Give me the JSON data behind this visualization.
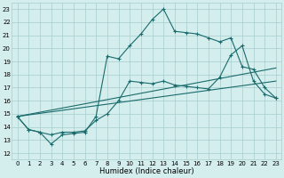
{
  "xlabel": "Humidex (Indice chaleur)",
  "xlim": [
    -0.5,
    23.5
  ],
  "ylim": [
    11.5,
    23.5
  ],
  "xticks": [
    0,
    1,
    2,
    3,
    4,
    5,
    6,
    7,
    8,
    9,
    10,
    11,
    12,
    13,
    14,
    15,
    16,
    17,
    18,
    19,
    20,
    21,
    22,
    23
  ],
  "yticks": [
    12,
    13,
    14,
    15,
    16,
    17,
    18,
    19,
    20,
    21,
    22,
    23
  ],
  "bg_color": "#d4eded",
  "grid_color": "#a8cccc",
  "line_color": "#1a6b6b",
  "line1_y": [
    14.8,
    13.8,
    13.6,
    12.7,
    13.4,
    13.5,
    13.6,
    14.8,
    19.4,
    19.2,
    20.2,
    21.1,
    22.2,
    23.0,
    21.3,
    21.2,
    21.1,
    20.8,
    20.5,
    20.8,
    18.6,
    18.4,
    17.0,
    16.2
  ],
  "line2_y": [
    14.8,
    13.8,
    13.6,
    13.4,
    13.6,
    13.6,
    13.7,
    14.5,
    15.0,
    16.0,
    17.5,
    17.4,
    17.3,
    17.5,
    17.2,
    17.1,
    17.0,
    16.9,
    17.8,
    19.5,
    20.2,
    17.5,
    16.5,
    16.2
  ],
  "ref1_start_y": 14.8,
  "ref1_end_y": 17.5,
  "ref2_start_y": 14.8,
  "ref2_end_y": 18.5,
  "linewidth": 0.8,
  "marker_size": 2.8,
  "tick_fontsize": 5.0,
  "xlabel_fontsize": 6.0
}
